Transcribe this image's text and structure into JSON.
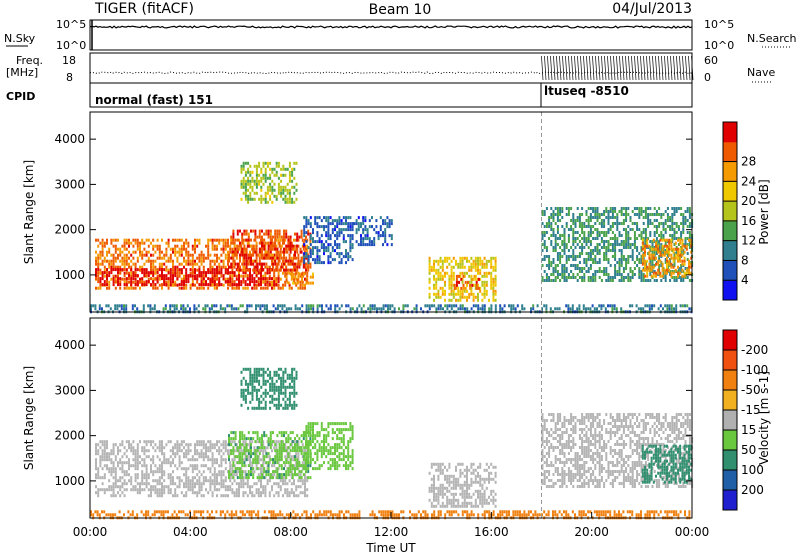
{
  "header": {
    "radar": "TIGER (fitACF)",
    "beam": "Beam 10",
    "date": "04/Jul/2013"
  },
  "status_panels": {
    "nsky_label": "N.Sky",
    "nsearch_label": "N.Search",
    "freq_label_1": "Freq.",
    "freq_label_2": "[MHz]",
    "nave_label": "Nave",
    "cpid_label": "CPID",
    "nsky_ticks": [
      "10^5",
      "10^0"
    ],
    "nsearch_ticks": [
      "10^5",
      "10^0"
    ],
    "freq_ticks": [
      "18",
      "8"
    ],
    "nave_ticks": [
      "60",
      "0"
    ],
    "cpid_segments": [
      {
        "label": "normal (fast) 151",
        "start_hour": 0,
        "end_hour": 18
      },
      {
        "label": "ltuseq -8510",
        "start_hour": 18,
        "end_hour": 24
      }
    ]
  },
  "chart_data": [
    {
      "type": "heatmap",
      "name": "power",
      "xlabel": "Time UT",
      "ylabel": "Slant Range [km]",
      "x_ticks": [
        "00:00",
        "04:00",
        "08:00",
        "12:00",
        "16:00",
        "20:00",
        "00:00"
      ],
      "xlim_hours": [
        0,
        24
      ],
      "ylim": [
        180,
        4600
      ],
      "y_ticks": [
        1000,
        2000,
        3000,
        4000
      ],
      "colorbar_label": "Power [dB]",
      "colorbar_ticks": [
        4,
        8,
        12,
        16,
        20,
        24,
        28
      ],
      "colorbar_range": [
        0,
        30
      ],
      "colorbar_colors": [
        "#1010f0",
        "#1f4fb8",
        "#2f7f8f",
        "#4aa34a",
        "#b5c41a",
        "#f0c800",
        "#f59a00",
        "#ef5a00",
        "#e00000"
      ],
      "regions": [
        {
          "t0": 0.2,
          "t1": 8.7,
          "r0": 700,
          "r1": 1800,
          "level": 24
        },
        {
          "t0": 0.2,
          "t1": 7.5,
          "r0": 800,
          "r1": 1150,
          "level": 29
        },
        {
          "t0": 5.5,
          "t1": 8.8,
          "r0": 1100,
          "r1": 2000,
          "level": 26
        },
        {
          "t0": 6.0,
          "t1": 8.2,
          "r0": 2600,
          "r1": 3500,
          "level": 14
        },
        {
          "t0": 7.8,
          "t1": 9.0,
          "r0": 850,
          "r1": 1050,
          "level": 22
        },
        {
          "t0": 13.5,
          "t1": 16.2,
          "r0": 450,
          "r1": 1400,
          "level": 18
        },
        {
          "t0": 14.5,
          "t1": 15.5,
          "r0": 700,
          "r1": 1000,
          "level": 25
        },
        {
          "t0": 18.0,
          "t1": 24.0,
          "r0": 900,
          "r1": 2500,
          "level": 10
        },
        {
          "t0": 22.0,
          "t1": 24.0,
          "r0": 1000,
          "r1": 1800,
          "level": 22
        },
        {
          "t0": 8.5,
          "t1": 10.5,
          "r0": 1300,
          "r1": 2300,
          "level": 6
        },
        {
          "t0": 10.5,
          "t1": 12.0,
          "r0": 1700,
          "r1": 2300,
          "level": 6
        },
        {
          "t0": 0.0,
          "t1": 24.0,
          "r0": 180,
          "r1": 350,
          "level": 8
        }
      ]
    },
    {
      "type": "heatmap",
      "name": "velocity",
      "xlabel": "Time UT",
      "ylabel": "Slant Range [km]",
      "x_ticks": [
        "00:00",
        "04:00",
        "08:00",
        "12:00",
        "16:00",
        "20:00",
        "00:00"
      ],
      "xlim_hours": [
        0,
        24
      ],
      "ylim": [
        180,
        4600
      ],
      "y_ticks": [
        1000,
        2000,
        3000,
        4000
      ],
      "colorbar_label": "Velocity [m s-1]",
      "colorbar_ticks": [
        "200",
        "100",
        "50",
        "15",
        "-15",
        "-50",
        "-100",
        "-200"
      ],
      "colorbar_colors": [
        "#1f1fd0",
        "#1f5fa8",
        "#2f8f6f",
        "#6ac83f",
        "#b0b0b0",
        "#f0b020",
        "#f08010",
        "#f05010",
        "#e00000"
      ],
      "ground_scatter_color": "#b4b4b4",
      "regions": [
        {
          "t0": 0.2,
          "t1": 8.7,
          "r0": 700,
          "r1": 1900,
          "level": 0
        },
        {
          "t0": 5.5,
          "t1": 8.8,
          "r0": 1100,
          "r1": 2100,
          "level": 30
        },
        {
          "t0": 6.0,
          "t1": 8.2,
          "r0": 2600,
          "r1": 3500,
          "level": 60
        },
        {
          "t0": 13.5,
          "t1": 16.2,
          "r0": 450,
          "r1": 1400,
          "level": 0
        },
        {
          "t0": 18.0,
          "t1": 24.0,
          "r0": 900,
          "r1": 2500,
          "level": 0
        },
        {
          "t0": 22.0,
          "t1": 24.0,
          "r0": 1000,
          "r1": 1800,
          "level": 35
        },
        {
          "t0": 8.5,
          "t1": 10.5,
          "r0": 1300,
          "r1": 2300,
          "level": 25
        },
        {
          "t0": 0.0,
          "t1": 24.0,
          "r0": 180,
          "r1": 350,
          "level": -40
        }
      ]
    }
  ]
}
